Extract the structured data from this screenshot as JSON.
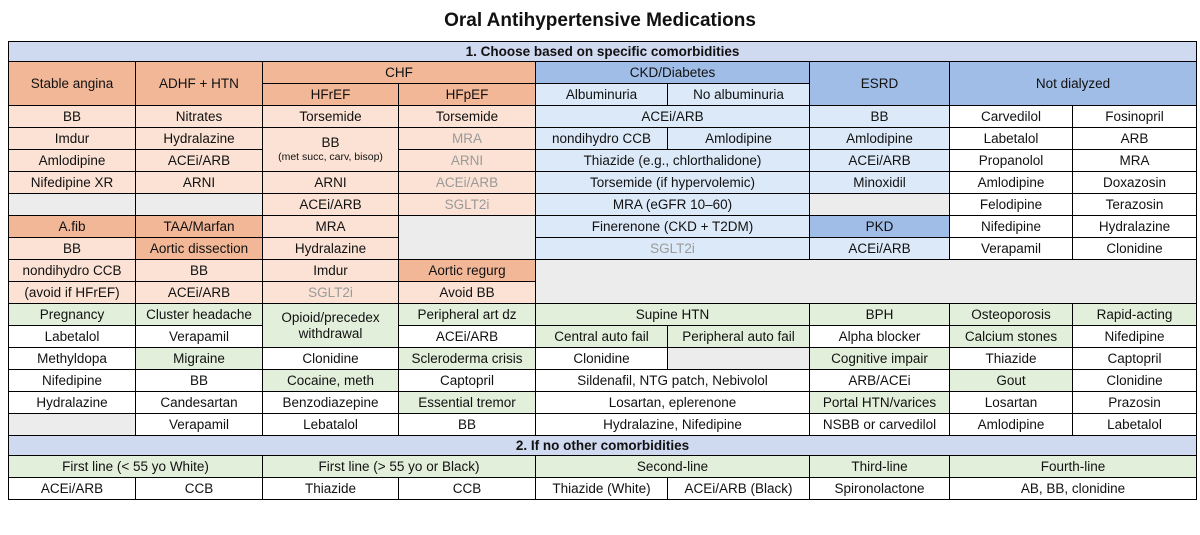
{
  "title": "Oral Antihypertensive Medications",
  "section1": "1. Choose based on specific comorbidities",
  "section2": "2. If no other comorbidities",
  "h": {
    "stable_angina": "Stable angina",
    "adhf_htn": "ADHF + HTN",
    "chf": "CHF",
    "hfref": "HFrEF",
    "hfpef": "HFpEF",
    "ckd": "CKD/Diabetes",
    "albuminuria": "Albuminuria",
    "no_albuminuria": "No albuminuria",
    "esrd": "ESRD",
    "not_dialyzed": "Not dialyzed",
    "afib": "A.fib",
    "taa": "TAA/Marfan",
    "aortic_dissection": "Aortic dissection",
    "aortic_regurg": "Aortic regurg",
    "pkd": "PKD"
  },
  "c": {
    "sa1": "BB",
    "sa2": "Imdur",
    "sa3": "Amlodipine",
    "sa4": "Nifedipine XR",
    "ad1": "Nitrates",
    "ad2": "Hydralazine",
    "ad3": "ACEi/ARB",
    "ad4": "ARNI",
    "hr1": "Torsemide",
    "hr2": "BB",
    "hr2b": "(met succ, carv, bisop)",
    "hr3": "ARNI",
    "hr4": "ACEi/ARB",
    "hr5": "MRA",
    "hr6": "Hydralazine",
    "hr7": "Imdur",
    "hr8": "SGLT2i",
    "hp1": "Torsemide",
    "hp2": "MRA",
    "hp3": "ARNI",
    "hp4": "ACEi/ARB",
    "hp5": "SGLT2i",
    "hp6": "Avoid BB",
    "ck1": "ACEi/ARB",
    "ck2a": "nondihydro CCB",
    "ck2b": "Amlodipine",
    "ck3": "Thiazide (e.g., chlorthalidone)",
    "ck4": "Torsemide (if hypervolemic)",
    "ck5": "MRA (eGFR 10–60)",
    "ck6": "Finerenone (CKD + T2DM)",
    "ck7": "SGLT2i",
    "es1": "BB",
    "es2": "Amlodipine",
    "es3": "ACEi/ARB",
    "es4": "Minoxidil",
    "es5": "ACEi/ARB",
    "nd1a": "Carvedilol",
    "nd1b": "Fosinopril",
    "nd2a": "Labetalol",
    "nd2b": "ARB",
    "nd3a": "Propanolol",
    "nd3b": "MRA",
    "nd4a": "Amlodipine",
    "nd4b": "Doxazosin",
    "nd5a": "Felodipine",
    "nd5b": "Terazosin",
    "nd6a": "Nifedipine",
    "nd6b": "Hydralazine",
    "nd7a": "Verapamil",
    "nd7b": "Clonidine",
    "af1": "BB",
    "af2": "nondihydro CCB",
    "af3": "(avoid if HFrEF)",
    "ta1": "BB",
    "ta2": "ACEi/ARB"
  },
  "g": {
    "pregnancy": "Pregnancy",
    "preg": [
      "Labetalol",
      "Methyldopa",
      "Nifedipine",
      "Hydralazine"
    ],
    "cluster": "Cluster headache",
    "cluster1": "Verapamil",
    "migraine": "Migraine",
    "mig": [
      "BB",
      "Candesartan",
      "Verapamil"
    ],
    "opioid": "Opioid/precedex withdrawal",
    "opi": [
      "Clonidine"
    ],
    "cocaine": "Cocaine, meth",
    "coc": [
      "Benzodiazepine",
      "Lebatalol"
    ],
    "pad": "Peripheral art dz",
    "pad1": "ACEi/ARB",
    "scleroderma": "Scleroderma crisis",
    "scl1": "Captopril",
    "tremor": "Essential tremor",
    "tre1": "BB",
    "supine": "Supine HTN",
    "central": "Central auto fail",
    "peripheral": "Peripheral auto fail",
    "sup1": "Clonidine",
    "sup2": "Sildenafil, NTG patch, Nebivolol",
    "sup3": "Losartan, eplerenone",
    "sup4": "Hydralazine, Nifedipine",
    "bph": "BPH",
    "bph1": "Alpha blocker",
    "cog": "Cognitive impair",
    "cog1": "ARB/ACEi",
    "portal": "Portal HTN/varices",
    "por1": "NSBB or carvedilol",
    "osteo": "Osteoporosis",
    "calcium": "Calcium stones",
    "ost1": "Thiazide",
    "gout": "Gout",
    "gou": [
      "Losartan",
      "Amlodipine"
    ],
    "rapid": "Rapid-acting",
    "rap": [
      "Nifedipine",
      "Captopril",
      "Clonidine",
      "Prazosin",
      "Labetalol"
    ]
  },
  "s2": {
    "first_white": "First line (< 55 yo White)",
    "first_black": "First line (> 55 yo or Black)",
    "second": "Second-line",
    "third": "Third-line",
    "fourth": "Fourth-line",
    "r": [
      "ACEi/ARB",
      "CCB",
      "Thiazide",
      "CCB",
      "Thiazide (White)",
      "ACEi/ARB (Black)",
      "Spironolactone",
      "AB, BB, clonidine"
    ]
  }
}
